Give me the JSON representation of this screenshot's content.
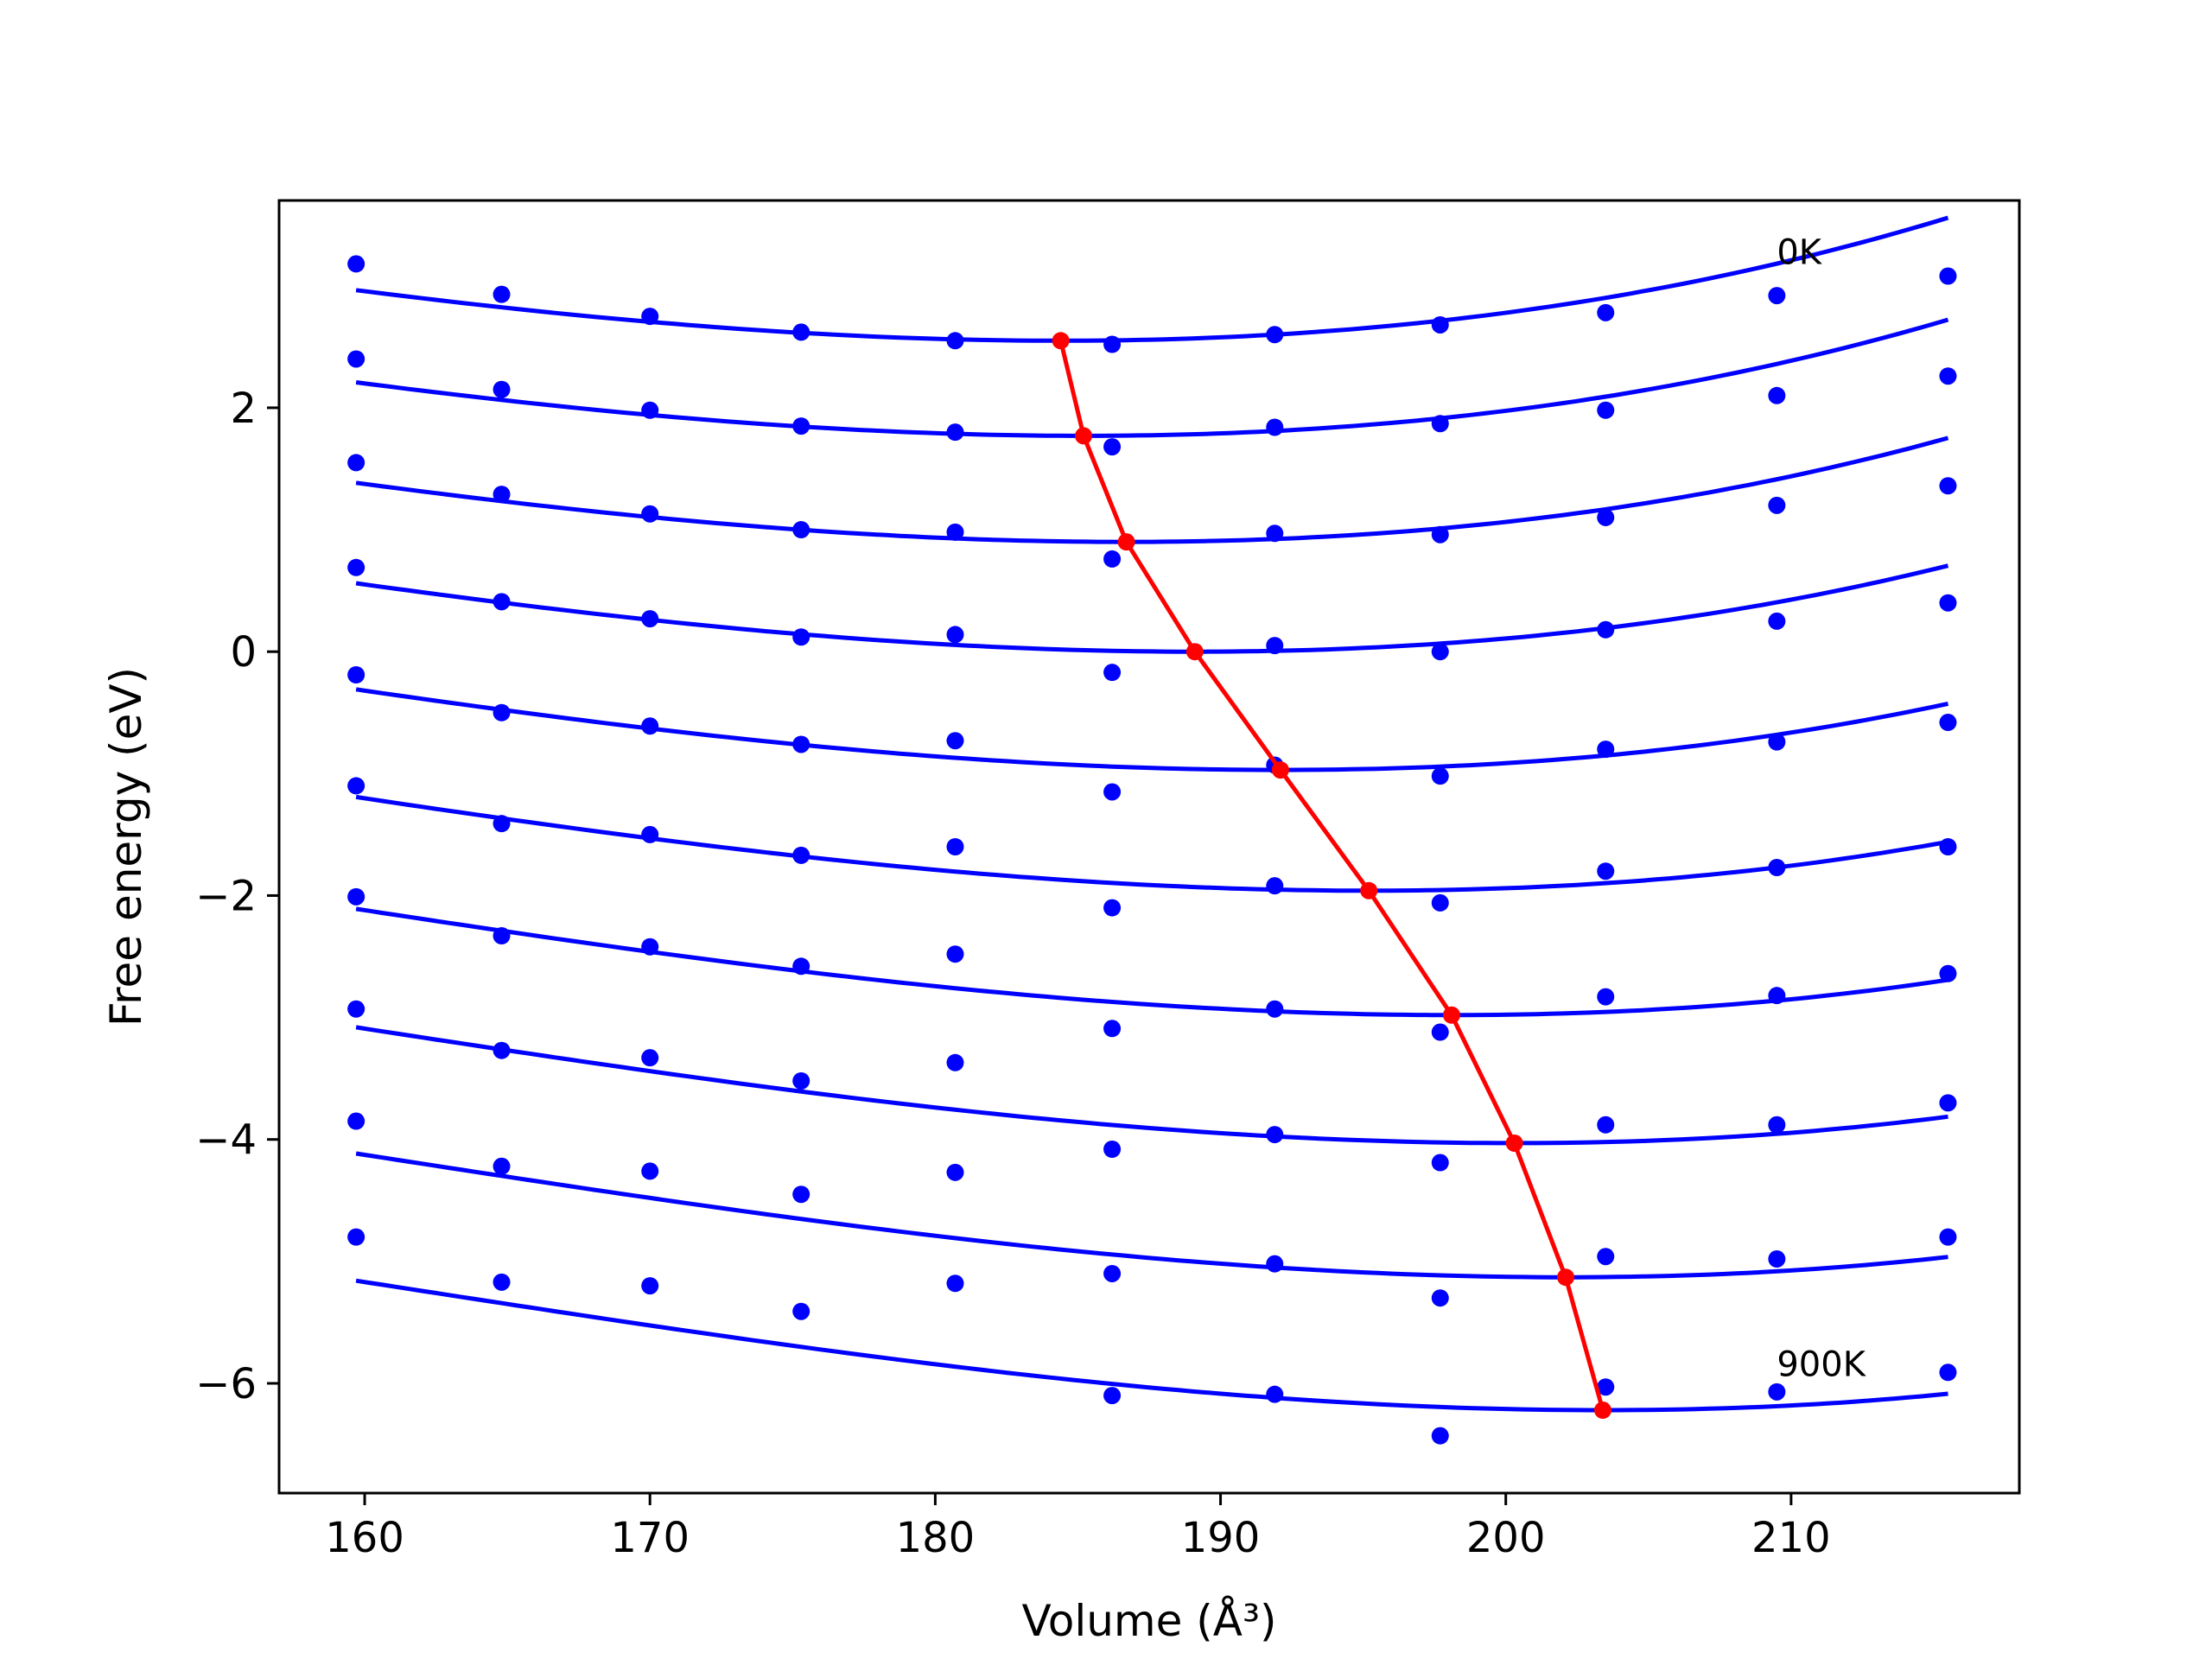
{
  "chart_data": {
    "type": "scatter",
    "xlabel": "Volume (Å³)",
    "ylabel": "Free energy (eV)",
    "xlim": [
      157,
      218
    ],
    "ylim": [
      -6.9,
      3.7
    ],
    "xticks": [
      160,
      170,
      180,
      190,
      200,
      210
    ],
    "yticks": [
      -6,
      -4,
      -2,
      0,
      2
    ],
    "xtick_labels": [
      "160",
      "170",
      "180",
      "190",
      "200",
      "210"
    ],
    "ytick_labels": [
      "−6",
      "−4",
      "−2",
      "0",
      "2"
    ],
    "grid": false,
    "legend": "none",
    "annotations": [
      {
        "text": "0K",
        "x": 209.5,
        "y": 3.18
      },
      {
        "text": "900K",
        "x": 209.5,
        "y": -5.94
      }
    ],
    "colors": {
      "points": "#0000ff",
      "fit": "#0000ff",
      "minima": "#ff0000",
      "axes": "#000000"
    },
    "volumes": [
      159.7,
      164.8,
      170.0,
      175.3,
      180.7,
      186.2,
      191.9,
      197.7,
      203.5,
      209.5,
      215.5
    ],
    "series": [
      {
        "values": [
          3.18,
          2.93,
          2.75,
          2.62,
          2.55,
          2.52,
          2.6,
          2.68,
          2.78,
          2.92,
          3.08
        ],
        "fit": {
          "v0": 184.4,
          "e0": 2.55,
          "a": 0.00084,
          "b": 6.5e-06
        }
      },
      {
        "values": [
          2.4,
          2.15,
          1.98,
          1.85,
          1.8,
          1.68,
          1.84,
          1.87,
          1.98,
          2.1,
          2.26
        ],
        "fit": {
          "v0": 185.2,
          "e0": 1.77,
          "a": 0.00084,
          "b": 6.5e-06
        }
      },
      {
        "values": [
          1.55,
          1.29,
          1.13,
          1.0,
          0.98,
          0.76,
          0.97,
          0.96,
          1.1,
          1.2,
          1.36
        ],
        "fit": {
          "v0": 186.7,
          "e0": 0.9,
          "a": 0.00084,
          "b": 6.5e-06
        }
      },
      {
        "values": [
          0.69,
          0.41,
          0.27,
          0.12,
          0.14,
          -0.17,
          0.05,
          0.0,
          0.18,
          0.25,
          0.4
        ],
        "fit": {
          "v0": 189.1,
          "e0": 0.0,
          "a": 0.00084,
          "b": 6.5e-06
        }
      },
      {
        "values": [
          -0.19,
          -0.5,
          -0.61,
          -0.76,
          -0.73,
          -1.15,
          -0.93,
          -1.02,
          -0.8,
          -0.74,
          -0.58
        ],
        "fit": {
          "v0": 192.1,
          "e0": -0.97,
          "a": 0.00084,
          "b": 6.5e-06
        }
      },
      {
        "values": [
          -1.1,
          -1.41,
          -1.5,
          -1.67,
          -1.6,
          -2.1,
          -1.92,
          -2.06,
          -1.8,
          -1.77,
          -1.6
        ],
        "fit": {
          "v0": 195.2,
          "e0": -1.96,
          "a": 0.00084,
          "b": 6.5e-06
        }
      },
      {
        "values": [
          -2.01,
          -2.33,
          -2.42,
          -2.58,
          -2.48,
          -3.09,
          -2.93,
          -3.12,
          -2.83,
          -2.82,
          -2.64
        ],
        "fit": {
          "v0": 198.1,
          "e0": -2.98,
          "a": 0.00084,
          "b": 6.5e-06
        }
      },
      {
        "values": [
          -2.93,
          -3.27,
          -3.33,
          -3.52,
          -3.37,
          -4.08,
          -3.96,
          -4.19,
          -3.88,
          -3.88,
          -3.7
        ],
        "fit": {
          "v0": 200.3,
          "e0": -4.03,
          "a": 0.00084,
          "b": 6.5e-06
        }
      },
      {
        "values": [
          -3.85,
          -4.22,
          -4.26,
          -4.45,
          -4.27,
          -5.1,
          -5.02,
          -5.3,
          -4.96,
          -4.98,
          -4.8
        ],
        "fit": {
          "v0": 202.1,
          "e0": -5.13,
          "a": 0.00084,
          "b": 6.5e-06
        }
      },
      {
        "values": [
          -4.8,
          -5.17,
          -5.2,
          -5.41,
          -5.18,
          -6.1,
          -6.09,
          -6.43,
          -6.03,
          -6.07,
          -5.91
        ],
        "fit": {
          "v0": 203.4,
          "e0": -6.22,
          "a": 0.00084,
          "b": 6.5e-06
        }
      }
    ],
    "minima": {
      "x": [
        184.4,
        185.2,
        186.7,
        189.1,
        192.1,
        195.2,
        198.1,
        200.3,
        202.1,
        203.4
      ],
      "y": [
        2.55,
        1.77,
        0.9,
        0.0,
        -0.97,
        -1.96,
        -2.98,
        -4.03,
        -5.13,
        -6.22
      ]
    }
  }
}
